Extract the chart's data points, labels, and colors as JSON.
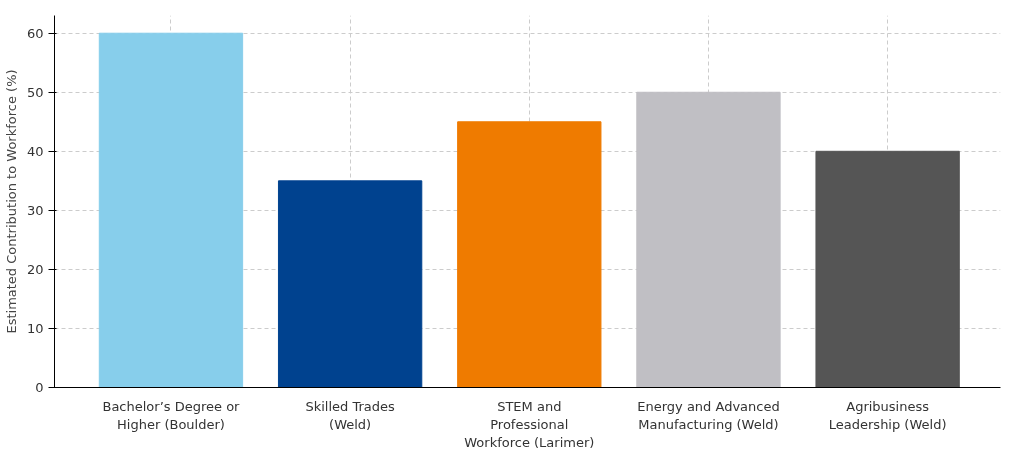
{
  "chart_data": {
    "type": "bar",
    "ylabel": "Estimated Contribution to Workforce (%)",
    "categories": [
      "Bachelor’s Degree or Higher (Boulder)",
      "Skilled Trades (Weld)",
      "STEM and Professional Workforce (Larimer)",
      "Energy and Advanced Manufacturing (Weld)",
      "Agribusiness Leadership (Weld)"
    ],
    "values": [
      60,
      35,
      45,
      50,
      40
    ],
    "colors": [
      "#87ceeb",
      "#00428f",
      "#ef7b00",
      "#c0bfc4",
      "#555555"
    ],
    "ylim": [
      0,
      63
    ],
    "yticks": [
      0,
      10,
      20,
      30,
      40,
      50,
      60
    ],
    "grid": true
  }
}
